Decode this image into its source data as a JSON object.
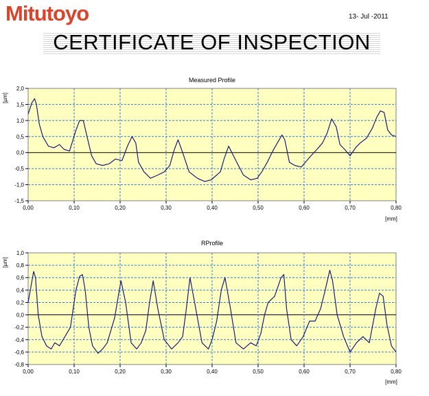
{
  "header": {
    "logo_text": "Mitutoyo",
    "date": "13- Jul -2011",
    "title": "CERTIFICATE OF INSPECTION"
  },
  "colors": {
    "logo": "#d9442b",
    "plot_background": "#ffffc0",
    "grid": "#2f7fd6",
    "series_line": "#1a1a7a"
  },
  "chart_data": [
    {
      "type": "line",
      "title": "Measured Profile",
      "ylabel": "[µm]",
      "xlabel": "[mm]",
      "xlim": [
        0,
        0.8
      ],
      "ylim": [
        -1.5,
        2.0
      ],
      "xticks": [
        "0,00",
        "0,10",
        "0,20",
        "0,30",
        "0,40",
        "0,50",
        "0,60",
        "0,70",
        "0,80"
      ],
      "yticks": [
        "2,0",
        "1,5",
        "1,0",
        "0,5",
        "0,0",
        "-0,5",
        "-1,0",
        "-1,5"
      ],
      "grid": true,
      "series": [
        {
          "x": [
            0.0,
            0.008,
            0.014,
            0.018,
            0.024,
            0.032,
            0.044,
            0.056,
            0.068,
            0.078,
            0.09,
            0.104,
            0.112,
            0.12,
            0.128,
            0.138,
            0.148,
            0.162,
            0.176,
            0.19,
            0.204,
            0.216,
            0.226,
            0.234,
            0.24,
            0.252,
            0.266,
            0.282,
            0.296,
            0.308,
            0.318,
            0.326,
            0.336,
            0.35,
            0.368,
            0.384,
            0.398,
            0.41,
            0.418,
            0.426,
            0.436,
            0.45,
            0.468,
            0.484,
            0.498,
            0.508,
            0.52,
            0.532,
            0.542,
            0.552,
            0.558,
            0.568,
            0.58,
            0.594,
            0.606,
            0.618,
            0.628,
            0.64,
            0.65,
            0.66,
            0.67,
            0.678,
            0.688,
            0.7,
            0.712,
            0.722,
            0.736,
            0.748,
            0.758,
            0.766,
            0.774,
            0.782,
            0.79,
            0.8
          ],
          "y": [
            1.2,
            1.55,
            1.68,
            1.5,
            0.9,
            0.5,
            0.2,
            0.15,
            0.25,
            0.1,
            0.05,
            0.7,
            1.0,
            1.0,
            0.5,
            -0.1,
            -0.35,
            -0.4,
            -0.35,
            -0.2,
            -0.25,
            0.2,
            0.5,
            0.3,
            -0.3,
            -0.6,
            -0.8,
            -0.7,
            -0.6,
            -0.4,
            0.1,
            0.4,
            0.0,
            -0.6,
            -0.8,
            -0.9,
            -0.85,
            -0.7,
            -0.6,
            -0.2,
            0.2,
            -0.2,
            -0.7,
            -0.85,
            -0.8,
            -0.6,
            -0.3,
            0.05,
            0.3,
            0.55,
            0.4,
            -0.3,
            -0.4,
            -0.45,
            -0.25,
            -0.05,
            0.1,
            0.3,
            0.6,
            1.05,
            0.8,
            0.25,
            0.1,
            -0.1,
            0.15,
            0.3,
            0.45,
            0.75,
            1.1,
            1.3,
            1.25,
            0.7,
            0.55,
            0.5
          ]
        }
      ]
    },
    {
      "type": "line",
      "title": "RProfile",
      "ylabel": "[µm]",
      "xlabel": "[mm]",
      "xlim": [
        0,
        0.8
      ],
      "ylim": [
        -0.8,
        1.0
      ],
      "xticks": [
        "0,00",
        "0,10",
        "0,20",
        "0,30",
        "0,40",
        "0,50",
        "0,60",
        "0,70",
        "0,80"
      ],
      "yticks": [
        "1,0",
        "0,8",
        "0,6",
        "0,4",
        "0,2",
        "0,0",
        "-0,2",
        "-0,4",
        "-0,6",
        "-0,8"
      ],
      "grid": true,
      "series": [
        {
          "x": [
            0.0,
            0.006,
            0.012,
            0.016,
            0.022,
            0.03,
            0.04,
            0.05,
            0.058,
            0.068,
            0.08,
            0.092,
            0.104,
            0.112,
            0.118,
            0.124,
            0.132,
            0.14,
            0.152,
            0.162,
            0.172,
            0.18,
            0.188,
            0.196,
            0.202,
            0.212,
            0.224,
            0.236,
            0.246,
            0.256,
            0.264,
            0.272,
            0.282,
            0.296,
            0.312,
            0.326,
            0.336,
            0.344,
            0.352,
            0.362,
            0.378,
            0.392,
            0.4,
            0.41,
            0.42,
            0.428,
            0.44,
            0.452,
            0.468,
            0.484,
            0.496,
            0.506,
            0.514,
            0.522,
            0.536,
            0.55,
            0.556,
            0.562,
            0.572,
            0.584,
            0.598,
            0.612,
            0.624,
            0.636,
            0.646,
            0.656,
            0.662,
            0.672,
            0.686,
            0.7,
            0.714,
            0.728,
            0.742,
            0.756,
            0.764,
            0.772,
            0.78,
            0.79,
            0.8
          ],
          "y": [
            0.2,
            0.45,
            0.7,
            0.6,
            0.0,
            -0.35,
            -0.5,
            -0.55,
            -0.45,
            -0.5,
            -0.35,
            -0.2,
            0.4,
            0.62,
            0.65,
            0.4,
            -0.2,
            -0.5,
            -0.62,
            -0.55,
            -0.45,
            -0.25,
            -0.05,
            0.3,
            0.55,
            0.2,
            -0.45,
            -0.55,
            -0.45,
            -0.25,
            0.2,
            0.55,
            0.1,
            -0.4,
            -0.55,
            -0.45,
            -0.35,
            0.1,
            0.6,
            0.2,
            -0.45,
            -0.55,
            -0.4,
            -0.1,
            0.4,
            0.6,
            0.1,
            -0.45,
            -0.55,
            -0.45,
            -0.5,
            -0.3,
            0.0,
            0.2,
            0.3,
            0.6,
            0.65,
            0.1,
            -0.4,
            -0.5,
            -0.35,
            -0.1,
            -0.1,
            0.1,
            0.4,
            0.72,
            0.55,
            0.0,
            -0.35,
            -0.6,
            -0.45,
            -0.35,
            -0.45,
            0.1,
            0.35,
            0.3,
            -0.15,
            -0.5,
            -0.6
          ]
        }
      ]
    }
  ]
}
